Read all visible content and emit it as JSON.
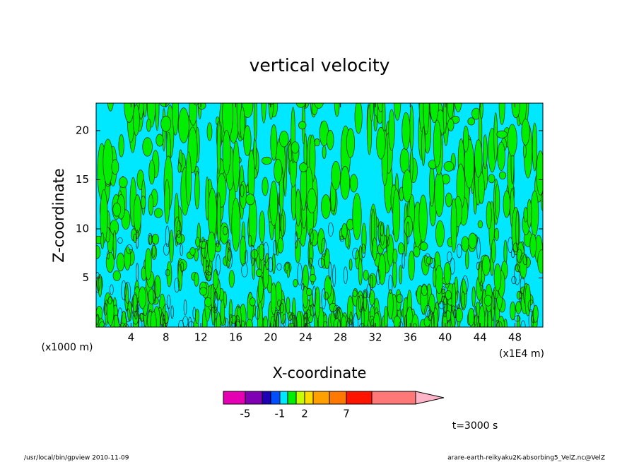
{
  "chart_data": {
    "type": "contour",
    "title": "vertical velocity",
    "x_label": "X-coordinate",
    "y_label": "Z-coordinate",
    "x_unit": "(x1E4 m)",
    "y_unit": "(x1000 m)",
    "xlim": [
      0,
      51.2
    ],
    "ylim": [
      0,
      22.8
    ],
    "xticks": [
      4,
      8,
      12,
      16,
      20,
      24,
      28,
      32,
      36,
      40,
      44,
      48
    ],
    "yticks": [
      5,
      10,
      15,
      20
    ],
    "background_color": "#00e8ff",
    "contour_color": "#00ee00",
    "colorbar": {
      "colors": [
        "#e600b4",
        "#8000b4",
        "#1e00b4",
        "#0050ff",
        "#00e8ff",
        "#00ee00",
        "#c8ff00",
        "#ffdc00",
        "#ffa000",
        "#ff7800",
        "#ff1400",
        "#ff7878",
        "#ffb4c8"
      ],
      "ticks": [
        -5,
        -1,
        2,
        7
      ]
    },
    "annotations": [
      "t=3000 s",
      "/usr/local/bin/gpview  2010-11-09",
      "arare-earth-reikyaku2K-absorbing5_VelZ.nc@VelZ"
    ]
  }
}
